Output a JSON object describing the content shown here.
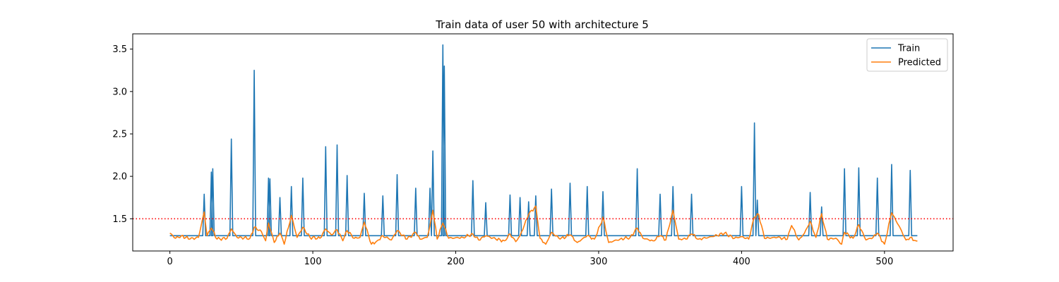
{
  "chart_data": {
    "type": "line",
    "title": "Train data of user 50 with architecture 5",
    "xlabel": "",
    "ylabel": "",
    "xlim": [
      -26,
      548
    ],
    "ylim": [
      1.12,
      3.68
    ],
    "xticks": [
      0,
      100,
      200,
      300,
      400,
      500
    ],
    "xtick_labels": [
      "0",
      "100",
      "200",
      "300",
      "400",
      "500"
    ],
    "yticks": [
      1.5,
      2.0,
      2.5,
      3.0,
      3.5
    ],
    "ytick_labels": [
      "1.5",
      "2.0",
      "2.5",
      "3.0",
      "3.5"
    ],
    "grid": false,
    "legend_position": "top-right",
    "threshold": {
      "y": 1.5,
      "color": "#ff0000",
      "style": "dotted"
    },
    "series": [
      {
        "name": "Train",
        "color": "#1f77b4",
        "baseline": 1.3,
        "x_end": 523,
        "peaks": [
          [
            24,
            1.79
          ],
          [
            29,
            2.05
          ],
          [
            30,
            2.09
          ],
          [
            43,
            2.44
          ],
          [
            59,
            3.25
          ],
          [
            69,
            1.98
          ],
          [
            70,
            1.97
          ],
          [
            77,
            1.75
          ],
          [
            85,
            1.88
          ],
          [
            93,
            1.98
          ],
          [
            109,
            2.35
          ],
          [
            117,
            2.37
          ],
          [
            124,
            2.01
          ],
          [
            136,
            1.8
          ],
          [
            149,
            1.77
          ],
          [
            159,
            2.02
          ],
          [
            172,
            1.86
          ],
          [
            182,
            1.86
          ],
          [
            184,
            2.3
          ],
          [
            191,
            3.55
          ],
          [
            192,
            3.3
          ],
          [
            212,
            1.95
          ],
          [
            221,
            1.69
          ],
          [
            238,
            1.78
          ],
          [
            245,
            1.75
          ],
          [
            251,
            1.7
          ],
          [
            256,
            1.77
          ],
          [
            267,
            1.85
          ],
          [
            280,
            1.92
          ],
          [
            292,
            1.88
          ],
          [
            303,
            1.82
          ],
          [
            327,
            2.09
          ],
          [
            343,
            1.79
          ],
          [
            352,
            1.88
          ],
          [
            365,
            1.79
          ],
          [
            400,
            1.88
          ],
          [
            409,
            2.63
          ],
          [
            411,
            1.72
          ],
          [
            448,
            1.81
          ],
          [
            456,
            1.64
          ],
          [
            472,
            2.09
          ],
          [
            482,
            2.1
          ],
          [
            495,
            1.98
          ],
          [
            505,
            2.14
          ],
          [
            518,
            2.07
          ]
        ]
      },
      {
        "name": "Predicted",
        "color": "#ff7f0e",
        "x_end": 523,
        "anchors": [
          [
            0,
            1.33
          ],
          [
            4,
            1.27
          ],
          [
            8,
            1.3
          ],
          [
            14,
            1.26
          ],
          [
            20,
            1.28
          ],
          [
            24,
            1.58
          ],
          [
            26,
            1.3
          ],
          [
            29,
            1.39
          ],
          [
            33,
            1.26
          ],
          [
            40,
            1.27
          ],
          [
            43,
            1.38
          ],
          [
            47,
            1.28
          ],
          [
            56,
            1.27
          ],
          [
            59,
            1.4
          ],
          [
            64,
            1.35
          ],
          [
            67,
            1.24
          ],
          [
            69,
            1.45
          ],
          [
            73,
            1.22
          ],
          [
            77,
            1.33
          ],
          [
            80,
            1.2
          ],
          [
            85,
            1.54
          ],
          [
            89,
            1.28
          ],
          [
            93,
            1.4
          ],
          [
            98,
            1.28
          ],
          [
            105,
            1.27
          ],
          [
            109,
            1.38
          ],
          [
            113,
            1.31
          ],
          [
            117,
            1.37
          ],
          [
            121,
            1.24
          ],
          [
            124,
            1.36
          ],
          [
            129,
            1.27
          ],
          [
            133,
            1.28
          ],
          [
            136,
            1.46
          ],
          [
            141,
            1.2
          ],
          [
            145,
            1.24
          ],
          [
            149,
            1.3
          ],
          [
            155,
            1.25
          ],
          [
            159,
            1.36
          ],
          [
            166,
            1.26
          ],
          [
            172,
            1.34
          ],
          [
            175,
            1.26
          ],
          [
            180,
            1.28
          ],
          [
            182,
            1.42
          ],
          [
            184,
            1.6
          ],
          [
            187,
            1.26
          ],
          [
            191,
            1.45
          ],
          [
            195,
            1.27
          ],
          [
            205,
            1.28
          ],
          [
            212,
            1.32
          ],
          [
            216,
            1.25
          ],
          [
            221,
            1.3
          ],
          [
            228,
            1.26
          ],
          [
            234,
            1.24
          ],
          [
            238,
            1.32
          ],
          [
            242,
            1.23
          ],
          [
            245,
            1.3
          ],
          [
            251,
            1.55
          ],
          [
            256,
            1.65
          ],
          [
            259,
            1.27
          ],
          [
            263,
            1.2
          ],
          [
            267,
            1.34
          ],
          [
            273,
            1.26
          ],
          [
            280,
            1.31
          ],
          [
            285,
            1.22
          ],
          [
            292,
            1.3
          ],
          [
            297,
            1.26
          ],
          [
            301,
            1.42
          ],
          [
            303,
            1.52
          ],
          [
            307,
            1.22
          ],
          [
            315,
            1.26
          ],
          [
            322,
            1.28
          ],
          [
            327,
            1.39
          ],
          [
            331,
            1.27
          ],
          [
            338,
            1.24
          ],
          [
            343,
            1.3
          ],
          [
            347,
            1.25
          ],
          [
            352,
            1.6
          ],
          [
            356,
            1.26
          ],
          [
            361,
            1.26
          ],
          [
            365,
            1.32
          ],
          [
            370,
            1.26
          ],
          [
            380,
            1.29
          ],
          [
            388,
            1.33
          ],
          [
            395,
            1.27
          ],
          [
            400,
            1.29
          ],
          [
            405,
            1.26
          ],
          [
            409,
            1.52
          ],
          [
            412,
            1.55
          ],
          [
            416,
            1.27
          ],
          [
            425,
            1.28
          ],
          [
            432,
            1.26
          ],
          [
            435,
            1.42
          ],
          [
            440,
            1.25
          ],
          [
            444,
            1.33
          ],
          [
            448,
            1.47
          ],
          [
            452,
            1.28
          ],
          [
            456,
            1.56
          ],
          [
            460,
            1.26
          ],
          [
            466,
            1.27
          ],
          [
            470,
            1.2
          ],
          [
            472,
            1.34
          ],
          [
            478,
            1.27
          ],
          [
            482,
            1.43
          ],
          [
            487,
            1.25
          ],
          [
            492,
            1.28
          ],
          [
            495,
            1.33
          ],
          [
            500,
            1.2
          ],
          [
            505,
            1.57
          ],
          [
            510,
            1.42
          ],
          [
            515,
            1.25
          ],
          [
            518,
            1.28
          ],
          [
            522,
            1.24
          ]
        ]
      }
    ]
  }
}
